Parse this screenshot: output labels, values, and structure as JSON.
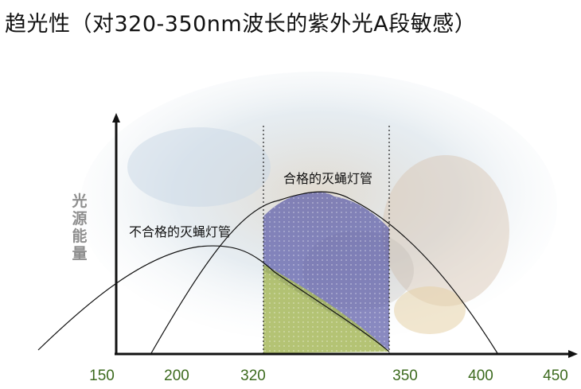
{
  "title": "趋光性（对320-350nm波长的紫外光A段敏感）",
  "diagram": {
    "y_axis_label": "光源能量",
    "curves": [
      {
        "label": "合格的灭蝇灯管",
        "fill_color": "#5b5ba8"
      },
      {
        "label": "不合格的灭蝇灯管",
        "fill_color": "#a7b85c"
      }
    ],
    "x_ticks": [
      "150",
      "200",
      "320",
      "350",
      "400",
      "450"
    ],
    "axis_color": "#111111",
    "tick_color": "#3d6b1f"
  }
}
